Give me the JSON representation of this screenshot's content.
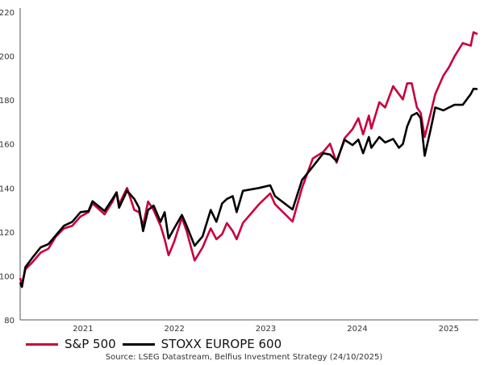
{
  "chart_data": {
    "type": "line",
    "title": "",
    "xlabel": "",
    "ylabel": "",
    "ylim": [
      80,
      220
    ],
    "yticks": [
      80,
      100,
      120,
      140,
      160,
      180,
      200,
      220
    ],
    "xlim": [
      "2020-10-23",
      "2025-10-24"
    ],
    "xticks": [
      "2021",
      "2022",
      "2023",
      "2024",
      "2025"
    ],
    "grid": false,
    "legend": "bottom-left",
    "x": [
      "2020-10-23",
      "2020-10-30",
      "2020-11-13",
      "2020-12-09",
      "2021-01-13",
      "2021-02-13",
      "2021-03-15",
      "2021-04-16",
      "2021-05-19",
      "2021-06-21",
      "2021-07-23",
      "2021-08-08",
      "2021-09-25",
      "2021-10-27",
      "2021-11-12",
      "2021-11-22",
      "2021-12-24",
      "2022-01-22",
      "2022-02-10",
      "2022-02-26",
      "2022-03-18",
      "2022-04-09",
      "2022-05-07",
      "2022-05-23",
      "2022-06-08",
      "2022-06-30",
      "2022-07-31",
      "2022-08-19",
      "2022-09-20",
      "2022-10-22",
      "2022-11-23",
      "2022-12-16",
      "2023-01-08",
      "2023-01-27",
      "2023-02-19",
      "2023-03-07",
      "2023-04-01",
      "2023-06-04",
      "2023-07-19",
      "2023-08-07",
      "2023-10-16",
      "2023-11-23",
      "2024-01-05",
      "2024-02-16",
      "2024-03-14",
      "2024-04-09",
      "2024-05-11",
      "2024-06-12",
      "2024-07-05",
      "2024-07-24",
      "2024-08-16",
      "2024-08-26",
      "2024-09-27",
      "2024-10-20",
      "2024-11-21",
      "2024-12-14",
      "2024-12-30",
      "2025-01-16",
      "2025-02-03",
      "2025-02-24",
      "2025-03-11",
      "2025-03-27",
      "2025-04-20",
      "2025-05-08",
      "2025-06-10",
      "2025-07-02",
      "2025-07-24",
      "2025-08-26",
      "2025-09-27",
      "2025-10-08",
      "2025-10-24"
    ],
    "series": [
      {
        "name": "S&P 500",
        "color": "#c8003c",
        "values": [
          99,
          96,
          103,
          106,
          110.6,
          112.4,
          118,
          121.6,
          122.8,
          127,
          129,
          133,
          128,
          133.8,
          138,
          132.5,
          140,
          130,
          129,
          122.8,
          133.8,
          130,
          122.8,
          116.7,
          109.4,
          115.5,
          126.5,
          120.4,
          107,
          113,
          121.6,
          116.7,
          119,
          124,
          120.4,
          116.7,
          124.1,
          132.6,
          137.5,
          132.6,
          124.7,
          140,
          153.4,
          156.4,
          160.1,
          151.5,
          162.6,
          166.8,
          171.7,
          164.4,
          172.9,
          167,
          179,
          176.6,
          186.3,
          182.7,
          180.3,
          187.6,
          187.6,
          176.6,
          174.1,
          163.2,
          174.1,
          182.7,
          191.2,
          194.9,
          199.8,
          205.9,
          204.7,
          210.8,
          210
        ]
      },
      {
        "name": "STOXX EUROPE 600",
        "color": "#000000",
        "values": [
          97,
          95,
          104,
          108,
          113,
          114.5,
          118.5,
          122.8,
          124.6,
          129,
          129.5,
          134,
          129.5,
          135,
          138,
          131,
          138.7,
          135,
          131,
          120.4,
          130,
          132,
          124.6,
          129,
          117,
          121.6,
          127.7,
          122.8,
          113.7,
          118,
          130,
          124.6,
          133,
          135,
          136.3,
          129,
          138.7,
          140,
          141.2,
          136.3,
          130.2,
          143.6,
          149.7,
          155.8,
          155.2,
          152.2,
          161.9,
          159.5,
          162,
          155.8,
          163.2,
          158.3,
          163.2,
          160.7,
          162.3,
          158.3,
          160,
          168,
          172.9,
          174.1,
          171.7,
          154.6,
          166.8,
          176.6,
          175.3,
          176.6,
          177.8,
          177.8,
          182.7,
          185.1,
          185
        ]
      }
    ],
    "source": "Source: LSEG Datastream, Belfius Investment Strategy (24/10/2025)"
  }
}
